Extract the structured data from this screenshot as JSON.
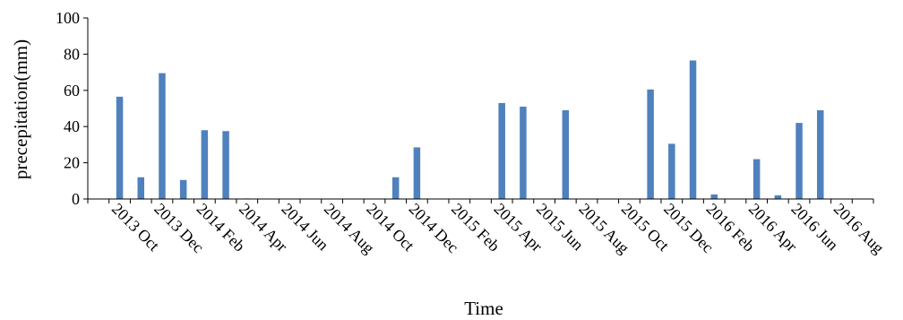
{
  "chart_data": {
    "type": "bar",
    "title": "",
    "xlabel": "Time",
    "ylabel": "precepitation(mm)",
    "ylim": [
      0,
      100
    ],
    "yticks": [
      0,
      20,
      40,
      60,
      80,
      100
    ],
    "grid": false,
    "legend": "none",
    "colors": {
      "bar": "#4f81bd",
      "axis": "#000000"
    },
    "tick_labels": [
      "2013 Oct",
      "2013 Dec",
      "2014 Feb",
      "2014 Apr",
      "2014 Jun",
      "2014 Aug",
      "2014 Oct",
      "2014 Dec",
      "2015 Feb",
      "2015 Apr",
      "2015 Jun",
      "2015 Aug",
      "2015 Oct",
      "2015 Dec",
      "2016 Feb",
      "2016 Apr",
      "2016 Jun",
      "2016 Aug"
    ],
    "categories": [
      "2013 Sep",
      "2013 Oct",
      "2013 Nov",
      "2013 Dec",
      "2014 Jan",
      "2014 Feb",
      "2014 Mar",
      "2014 Apr",
      "2014 May",
      "2014 Jun",
      "2014 Jul",
      "2014 Aug",
      "2014 Sep",
      "2014 Oct",
      "2014 Nov",
      "2014 Dec",
      "2015 Jan",
      "2015 Feb",
      "2015 Mar",
      "2015 Apr",
      "2015 May",
      "2015 Jun",
      "2015 Jul",
      "2015 Aug",
      "2015 Sep",
      "2015 Oct",
      "2015 Nov",
      "2015 Dec",
      "2016 Jan",
      "2016 Feb",
      "2016 Mar",
      "2016 Apr",
      "2016 May",
      "2016 Jun",
      "2016 Jul",
      "2016 Aug",
      "2016 Sep"
    ],
    "values": [
      0,
      56.5,
      12,
      69.5,
      10.5,
      38,
      37.5,
      0.3,
      0,
      0,
      0,
      0,
      0,
      0,
      12,
      28.5,
      0,
      0,
      0,
      53,
      51,
      0,
      49,
      0,
      0,
      0,
      60.5,
      30.5,
      76.5,
      2.5,
      0,
      22,
      2,
      42,
      49,
      0,
      0
    ]
  }
}
